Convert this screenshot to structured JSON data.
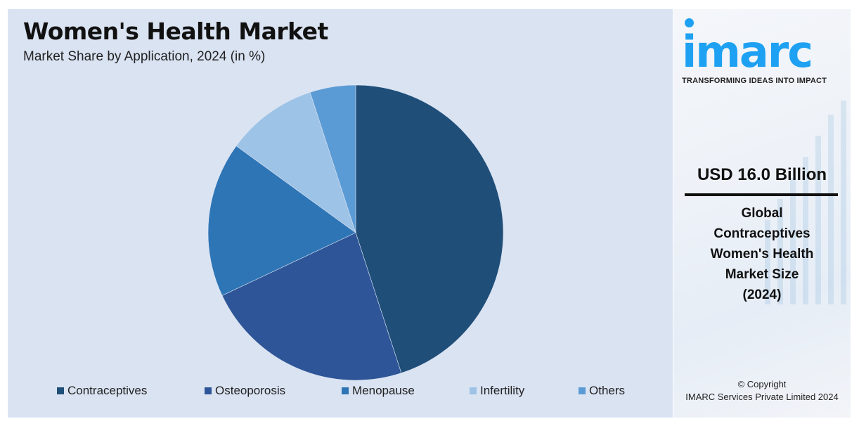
{
  "header": {
    "title": "Women's Health Market",
    "subtitle": "Market Share by Application, 2024 (in %)"
  },
  "legend": [
    {
      "label": "Contraceptives",
      "color": "#1f4e79"
    },
    {
      "label": "Osteoporosis",
      "color": "#2e5597"
    },
    {
      "label": "Menopause",
      "color": "#2e75b6"
    },
    {
      "label": "Infertility",
      "color": "#9dc3e6"
    },
    {
      "label": "Others",
      "color": "#5b9bd5"
    }
  ],
  "sidebar": {
    "logo_text": "imarc",
    "tagline": "TRANSFORMING IDEAS INTO IMPACT",
    "value": "USD 16.0 Billion",
    "description_lines": [
      "Global",
      "Contraceptives",
      "Women's Health",
      "Market Size",
      "(2024)"
    ],
    "copyright_line1": "© Copyright",
    "copyright_line2": "IMARC Services Private Limited 2024"
  },
  "chart_data": {
    "type": "pie",
    "title": "Women's Health Market",
    "subtitle": "Market Share by Application, 2024 (in %)",
    "categories": [
      "Contraceptives",
      "Osteoporosis",
      "Menopause",
      "Infertility",
      "Others"
    ],
    "values": [
      45,
      23,
      17,
      10,
      5
    ],
    "colors": [
      "#1f4e79",
      "#2e5597",
      "#2e75b6",
      "#9dc3e6",
      "#5b9bd5"
    ],
    "start_angle": "12 o'clock, clockwise",
    "legend_position": "bottom",
    "data_labels": false
  }
}
